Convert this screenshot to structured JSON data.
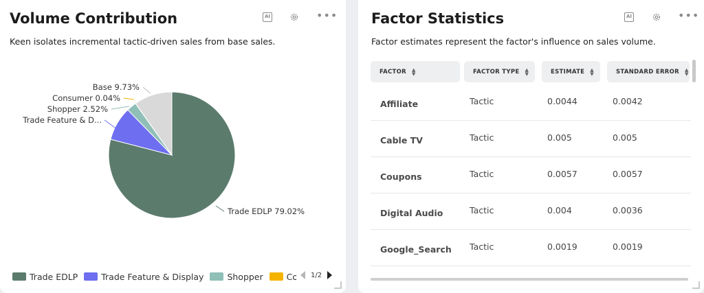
{
  "volume": {
    "title": "Volume Contribution",
    "subtitle": "Keen isolates incremental tactic-driven sales from base sales.",
    "toolbar": {
      "ai_label": "AI"
    }
  },
  "chart_data": {
    "type": "pie",
    "slices": [
      {
        "name": "Trade EDLP",
        "value": 79.02,
        "label": "Trade EDLP 79.02%",
        "color": "#5b7b6d"
      },
      {
        "name": "Trade Feature & Display",
        "value": 8.69,
        "label": "Trade Feature & D...",
        "color": "#6d6ef0"
      },
      {
        "name": "Shopper",
        "value": 2.52,
        "label": "Shopper 2.52%",
        "color": "#8fbfb7"
      },
      {
        "name": "Consumer",
        "value": 0.04,
        "label": "Consumer 0.04%",
        "color": "#f5b300"
      },
      {
        "name": "Base",
        "value": 9.73,
        "label": "Base 9.73%",
        "color": "#d9d9d9"
      }
    ],
    "legend": {
      "position": "bottom",
      "items": [
        {
          "label": "Trade EDLP",
          "color": "#5b7b6d"
        },
        {
          "label": "Trade Feature & Display",
          "color": "#6d6ef0"
        },
        {
          "label": "Shopper",
          "color": "#8fbfb7"
        },
        {
          "label": "Consumer",
          "color": "#f5b300"
        }
      ],
      "page": "1/2"
    }
  },
  "factors": {
    "title": "Factor Statistics",
    "subtitle": "Factor estimates represent the factor's influence on sales volume.",
    "toolbar": {
      "ai_label": "AI"
    },
    "columns": [
      "FACTOR",
      "FACTOR TYPE",
      "ESTIMATE",
      "STANDARD ERROR"
    ],
    "rows": [
      {
        "factor": "Affiliate",
        "type": "Tactic",
        "estimate": "0.0044",
        "se": "0.0042"
      },
      {
        "factor": "Cable TV",
        "type": "Tactic",
        "estimate": "0.005",
        "se": "0.005"
      },
      {
        "factor": "Coupons",
        "type": "Tactic",
        "estimate": "0.0057",
        "se": "0.0057"
      },
      {
        "factor": "Digital Audio",
        "type": "Tactic",
        "estimate": "0.004",
        "se": "0.0036"
      },
      {
        "factor": "Google_Search",
        "type": "Tactic",
        "estimate": "0.0019",
        "se": "0.0019"
      }
    ]
  },
  "icons": [
    "ai-icon",
    "gear-icon",
    "more-icon",
    "sort-icon",
    "chevron-left-icon",
    "chevron-right-icon"
  ]
}
